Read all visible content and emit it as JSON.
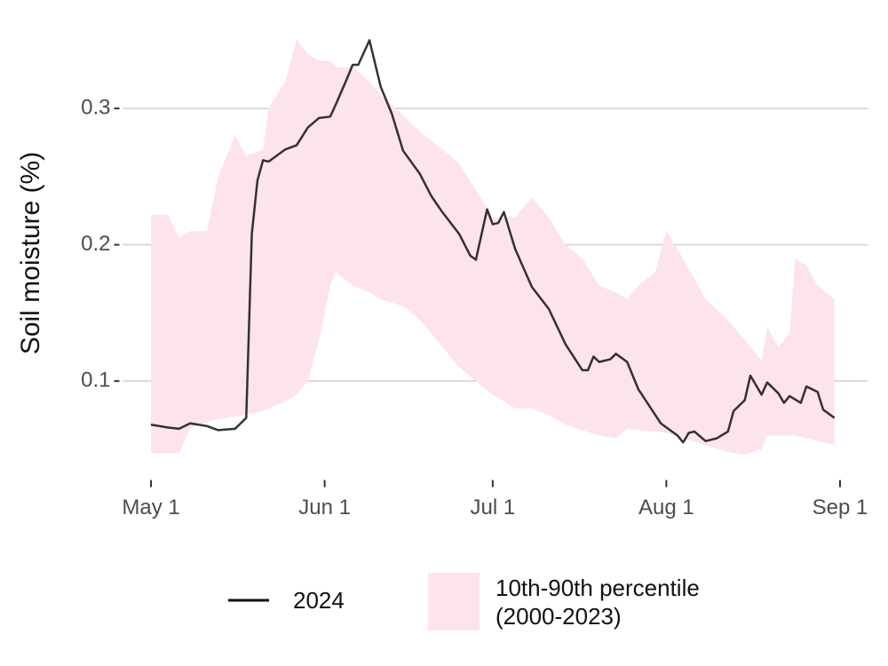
{
  "chart_data": {
    "type": "line",
    "ylabel": "Soil moisture (%)",
    "xlim": [
      "04-26",
      "09-06"
    ],
    "xticks": [
      {
        "value": "05-01",
        "label": "May 1"
      },
      {
        "value": "06-01",
        "label": "Jun 1"
      },
      {
        "value": "07-01",
        "label": "Jul 1"
      },
      {
        "value": "08-01",
        "label": "Aug 1"
      },
      {
        "value": "09-01",
        "label": "Sep 1"
      }
    ],
    "ylim": [
      0.03,
      0.36
    ],
    "yticks": [
      0.1,
      0.2,
      0.3
    ],
    "grid": true,
    "legend": "bottom",
    "series": [
      {
        "name": "2024",
        "color": "#111111",
        "x": [
          "05-01",
          "05-04",
          "05-06",
          "05-08",
          "05-11",
          "05-13",
          "05-16",
          "05-18",
          "05-19",
          "05-20",
          "05-21",
          "05-22",
          "05-25",
          "05-27",
          "05-29",
          "05-31",
          "06-02",
          "06-03",
          "06-05",
          "06-06",
          "06-07",
          "06-09",
          "06-11",
          "06-13",
          "06-15",
          "06-18",
          "06-20",
          "06-22",
          "06-25",
          "06-27",
          "06-28",
          "06-30",
          "07-01",
          "07-02",
          "07-03",
          "07-05",
          "07-08",
          "07-11",
          "07-14",
          "07-17",
          "07-18",
          "07-19",
          "07-20",
          "07-22",
          "07-23",
          "07-25",
          "07-27",
          "07-31",
          "08-03",
          "08-04",
          "08-05",
          "08-06",
          "08-08",
          "08-10",
          "08-12",
          "08-13",
          "08-15",
          "08-16",
          "08-18",
          "08-19",
          "08-21",
          "08-22",
          "08-23",
          "08-25",
          "08-26",
          "08-28",
          "08-29",
          "08-31"
        ],
        "values": [
          0.068,
          0.066,
          0.065,
          0.069,
          0.067,
          0.064,
          0.065,
          0.073,
          0.208,
          0.247,
          0.262,
          0.261,
          0.27,
          0.273,
          0.286,
          0.293,
          0.294,
          0.303,
          0.322,
          0.332,
          0.332,
          0.35,
          0.316,
          0.296,
          0.269,
          0.252,
          0.236,
          0.224,
          0.208,
          0.192,
          0.189,
          0.226,
          0.215,
          0.216,
          0.224,
          0.197,
          0.169,
          0.153,
          0.127,
          0.108,
          0.108,
          0.118,
          0.114,
          0.116,
          0.12,
          0.114,
          0.094,
          0.069,
          0.06,
          0.055,
          0.062,
          0.063,
          0.056,
          0.058,
          0.063,
          0.078,
          0.086,
          0.104,
          0.09,
          0.099,
          0.091,
          0.084,
          0.089,
          0.084,
          0.096,
          0.092,
          0.079,
          0.073
        ]
      },
      {
        "name": "10th-90th percentile (2000-2023)",
        "type": "band",
        "color": "#fde4ea",
        "x": [
          "05-01",
          "05-04",
          "05-06",
          "05-08",
          "05-11",
          "05-13",
          "05-16",
          "05-18",
          "05-21",
          "05-22",
          "05-25",
          "05-27",
          "05-29",
          "05-31",
          "06-02",
          "06-03",
          "06-06",
          "06-09",
          "06-11",
          "06-15",
          "06-18",
          "06-22",
          "06-25",
          "06-28",
          "07-01",
          "07-03",
          "07-05",
          "07-08",
          "07-11",
          "07-14",
          "07-17",
          "07-20",
          "07-23",
          "07-25",
          "07-27",
          "07-30",
          "08-01",
          "08-04",
          "08-08",
          "08-12",
          "08-15",
          "08-18",
          "08-19",
          "08-21",
          "08-23",
          "08-24",
          "08-26",
          "08-28",
          "08-31"
        ],
        "upper": [
          0.222,
          0.222,
          0.205,
          0.21,
          0.21,
          0.25,
          0.28,
          0.265,
          0.27,
          0.3,
          0.32,
          0.351,
          0.34,
          0.335,
          0.335,
          0.33,
          0.33,
          0.32,
          0.31,
          0.295,
          0.283,
          0.27,
          0.26,
          0.24,
          0.22,
          0.22,
          0.22,
          0.235,
          0.22,
          0.2,
          0.19,
          0.17,
          0.165,
          0.16,
          0.17,
          0.18,
          0.21,
          0.19,
          0.16,
          0.145,
          0.13,
          0.115,
          0.14,
          0.125,
          0.135,
          0.19,
          0.185,
          0.17,
          0.16
        ],
        "lower": [
          0.047,
          0.047,
          0.047,
          0.065,
          0.07,
          0.072,
          0.074,
          0.075,
          0.078,
          0.08,
          0.085,
          0.09,
          0.1,
          0.13,
          0.17,
          0.18,
          0.17,
          0.165,
          0.16,
          0.155,
          0.145,
          0.125,
          0.11,
          0.1,
          0.09,
          0.085,
          0.08,
          0.08,
          0.075,
          0.068,
          0.064,
          0.06,
          0.058,
          0.065,
          0.064,
          0.063,
          0.062,
          0.058,
          0.053,
          0.048,
          0.046,
          0.05,
          0.06,
          0.06,
          0.06,
          0.06,
          0.058,
          0.056,
          0.053
        ]
      }
    ]
  }
}
